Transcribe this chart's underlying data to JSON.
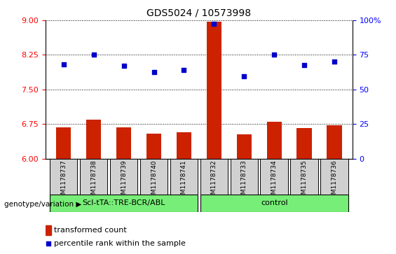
{
  "title": "GDS5024 / 10573998",
  "samples": [
    "GSM1178737",
    "GSM1178738",
    "GSM1178739",
    "GSM1178740",
    "GSM1178741",
    "GSM1178732",
    "GSM1178733",
    "GSM1178734",
    "GSM1178735",
    "GSM1178736"
  ],
  "transformed_counts": [
    6.68,
    6.85,
    6.68,
    6.55,
    6.58,
    8.97,
    6.53,
    6.8,
    6.67,
    6.73
  ],
  "percentile_ranks": [
    8.05,
    8.25,
    8.02,
    7.88,
    7.93,
    8.93,
    7.78,
    8.25,
    8.03,
    8.1
  ],
  "group1_label": "Scl-tTA::TRE-BCR/ABL",
  "group2_label": "control",
  "group1_indices": [
    0,
    1,
    2,
    3,
    4
  ],
  "group2_indices": [
    5,
    6,
    7,
    8,
    9
  ],
  "ylim_left": [
    6,
    9
  ],
  "ylim_right": [
    0,
    100
  ],
  "yticks_left": [
    6,
    6.75,
    7.5,
    8.25,
    9
  ],
  "yticks_right": [
    0,
    25,
    50,
    75,
    100
  ],
  "bar_color": "#cc2200",
  "dot_color": "#0000cc",
  "sample_bg": "#d0d0d0",
  "group_bar_color": "#77ee77",
  "legend_bar_label": "transformed count",
  "legend_dot_label": "percentile rank within the sample",
  "genotype_label": "genotype/variation"
}
